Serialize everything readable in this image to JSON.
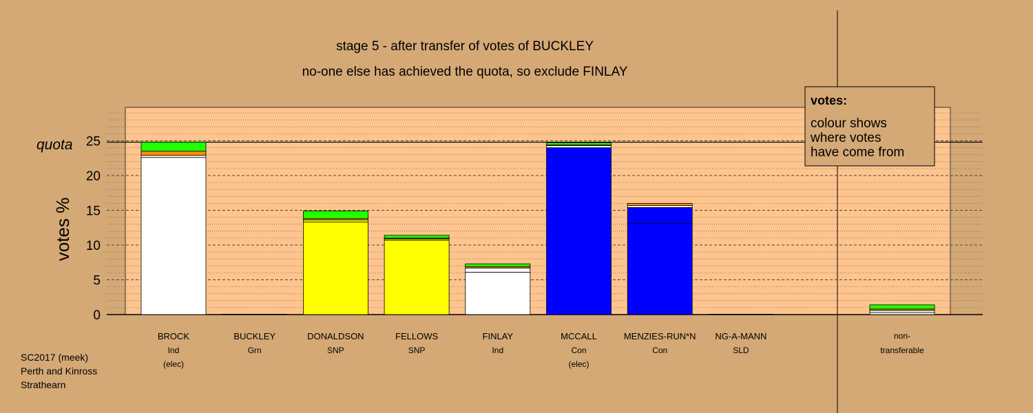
{
  "chart_data": {
    "type": "bar",
    "title": "stage 5 - after transfer of votes of BUCKLEY",
    "subtitle": "no-one else has achieved the quota, so exclude FINLAY",
    "ylabel": "votes %",
    "quota_label": "quota",
    "quota_value": 24.8,
    "ylim": [
      0,
      30
    ],
    "yticks": [
      0,
      5,
      10,
      15,
      20,
      25
    ],
    "grid": true,
    "legend": {
      "position": "top-right",
      "title": "votes:",
      "lines": [
        "colour shows",
        "where votes",
        "have come from"
      ]
    },
    "colors": {
      "background": "#D4A976",
      "plot_area": "#FEC48E",
      "Ind": "#FFFFFF",
      "Grn": "#22FF00",
      "SNP": "#FFFF00",
      "Con": "#0000FF",
      "Lab": "#FF8C00",
      "SLD": "#FFA500"
    },
    "categories": [
      {
        "name": "BROCK",
        "party": "Ind",
        "note": "(elec)",
        "segments": [
          {
            "value": 22.6,
            "color": "#FFFFFF"
          },
          {
            "value": 0.3,
            "color": "#FFFFFF"
          },
          {
            "value": 0.6,
            "color": "#FF8C00"
          },
          {
            "value": 1.3,
            "color": "#22FF00"
          }
        ]
      },
      {
        "name": "BUCKLEY",
        "party": "Grn",
        "note": "",
        "segments": []
      },
      {
        "name": "DONALDSON",
        "party": "SNP",
        "note": "",
        "segments": [
          {
            "value": 13.3,
            "color": "#FFFF00"
          },
          {
            "value": 0.3,
            "color": "#FFFF00"
          },
          {
            "value": 0.2,
            "color": "#FF8C00"
          },
          {
            "value": 1.1,
            "color": "#22FF00"
          }
        ]
      },
      {
        "name": "FELLOWS",
        "party": "SNP",
        "note": "",
        "segments": [
          {
            "value": 10.7,
            "color": "#FFFF00"
          },
          {
            "value": 0.2,
            "color": "#FFFF00"
          },
          {
            "value": 0.1,
            "color": "#FF8C00"
          },
          {
            "value": 0.4,
            "color": "#22FF00"
          }
        ]
      },
      {
        "name": "FINLAY",
        "party": "Ind",
        "note": "",
        "segments": [
          {
            "value": 6.1,
            "color": "#FFFFFF"
          },
          {
            "value": 0.6,
            "color": "#FFFFFF"
          },
          {
            "value": 0.2,
            "color": "#FF8C00"
          },
          {
            "value": 0.4,
            "color": "#22FF00"
          }
        ]
      },
      {
        "name": "MCCALL",
        "party": "Con",
        "note": "(elec)",
        "segments": [
          {
            "value": 24.0,
            "color": "#0000FF"
          },
          {
            "value": 0.3,
            "color": "#FFFFFF"
          },
          {
            "value": 0.1,
            "color": "#FF8C00"
          },
          {
            "value": 0.3,
            "color": "#22FF00"
          }
        ]
      },
      {
        "name": "MENZIES-RUN*N",
        "party": "Con",
        "note": "",
        "segments": [
          {
            "value": 13.1,
            "color": "#0000FF"
          },
          {
            "value": 2.3,
            "color": "#0000FF"
          },
          {
            "value": 0.3,
            "color": "#FFFFFF"
          },
          {
            "value": 0.3,
            "color": "#FF8C00"
          }
        ]
      },
      {
        "name": "NG-A-MANN",
        "party": "SLD",
        "note": "",
        "segments": []
      }
    ],
    "nontransferable": {
      "label_line1": "non-",
      "label_line2": "transferable",
      "segments": [
        {
          "value": 0.3,
          "color": "#FFFFFF"
        },
        {
          "value": 0.3,
          "color": "#FFFFFF"
        },
        {
          "value": 0.2,
          "color": "#FF8C00"
        },
        {
          "value": 0.6,
          "color": "#22FF00"
        }
      ]
    }
  },
  "footer": {
    "line1": "SC2017 (meek)",
    "line2": "Perth and Kinross",
    "line3": "Strathearn"
  }
}
